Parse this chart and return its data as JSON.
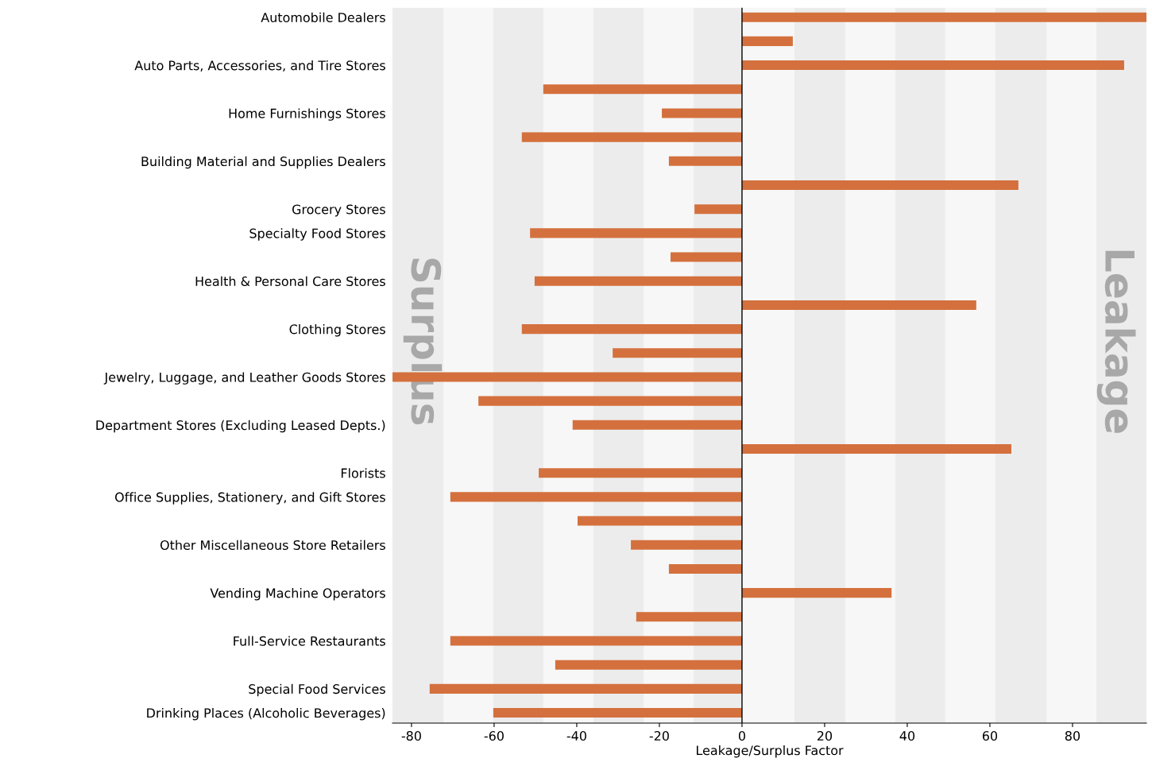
{
  "chart_data": {
    "type": "bar",
    "orientation": "horizontal",
    "xlabel": "Leakage/Surplus Factor",
    "categories": [
      "Automobile Dealers",
      null,
      "Auto Parts, Accessories, and Tire Stores",
      null,
      "Home Furnishings Stores",
      null,
      "Building Material and Supplies Dealers",
      null,
      "Grocery Stores",
      "Specialty Food Stores",
      null,
      "Health & Personal Care Stores",
      null,
      "Clothing Stores",
      null,
      "Jewelry, Luggage, and Leather Goods Stores",
      null,
      "Department Stores (Excluding Leased Depts.)",
      null,
      "Florists",
      "Office Supplies, Stationery, and Gift Stores",
      null,
      "Other Miscellaneous Store Retailers",
      null,
      "Vending Machine Operators",
      null,
      "Full-Service Restaurants",
      null,
      "Special Food Services",
      "Drinking Places (Alcoholic Beverages)"
    ],
    "values": [
      97.9,
      12.3,
      92.5,
      -48.1,
      -19.4,
      -53.3,
      -17.7,
      66.9,
      -11.5,
      -51.3,
      -17.3,
      -50.2,
      56.7,
      -53.3,
      -31.3,
      -84.6,
      -63.8,
      -41.0,
      65.2,
      -49.2,
      -70.6,
      -39.8,
      -26.9,
      -17.7,
      36.2,
      -25.6,
      -70.6,
      -45.2,
      -75.6,
      -60.2
    ],
    "color": "#d4703d",
    "xlim": [
      -84.6,
      97.9
    ],
    "xticks": [
      -80,
      -60,
      -40,
      -20,
      0,
      20,
      40,
      60,
      80
    ],
    "grid": false,
    "ref_lines": [
      {
        "axis": "x",
        "value": 0,
        "color": "#000000"
      }
    ],
    "bands": [
      {
        "axis": "x",
        "from": -84.6,
        "to": -72.3,
        "color": "#ececec"
      },
      {
        "axis": "x",
        "from": -60.2,
        "to": -48.1,
        "color": "#ececec"
      },
      {
        "axis": "x",
        "from": -36.0,
        "to": -23.8,
        "color": "#ececec"
      },
      {
        "axis": "x",
        "from": -11.7,
        "to": 0,
        "color": "#ececec"
      },
      {
        "axis": "x",
        "from": 12.7,
        "to": 25.0,
        "color": "#ececec"
      },
      {
        "axis": "x",
        "from": 37.1,
        "to": 49.2,
        "color": "#ececec"
      },
      {
        "axis": "x",
        "from": 61.3,
        "to": 73.7,
        "color": "#ececec"
      },
      {
        "axis": "x",
        "from": 85.8,
        "to": 97.9,
        "color": "#ececec"
      }
    ],
    "annotations": [
      "Surplus",
      "Leakage"
    ]
  }
}
